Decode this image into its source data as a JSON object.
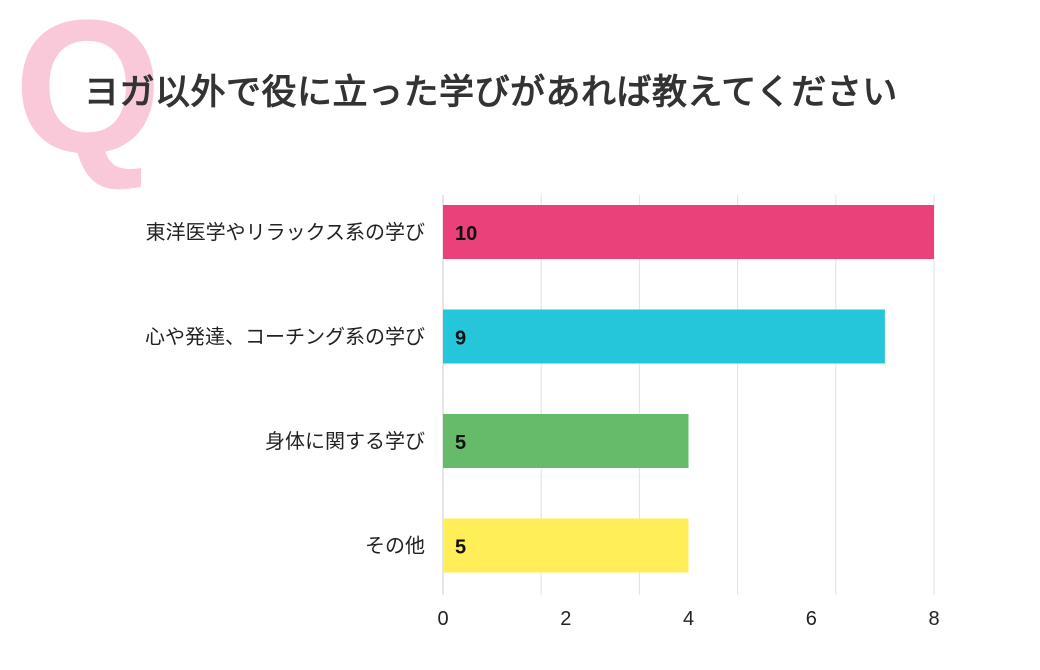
{
  "header": {
    "q_mark": "Q",
    "title": "ヨガ以外で役に立った学びがあれば教えてください"
  },
  "chart_data": {
    "type": "bar",
    "orientation": "horizontal",
    "title": "ヨガ以外で役に立った学びがあれば教えてください",
    "categories": [
      "東洋医学やリラックス系の学び",
      "心や発達、コーチング系の学び",
      "身体に関する学び",
      "その他"
    ],
    "values": [
      10,
      9,
      5,
      5
    ],
    "data_labels": [
      "10",
      "9",
      "5",
      "5"
    ],
    "colors": [
      "#EB417A",
      "#26C6DA",
      "#66BB6A",
      "#FFEE58"
    ],
    "xlim": [
      0,
      10
    ],
    "x_tick_labels": [
      "0",
      "2",
      "4",
      "6",
      "8"
    ],
    "grid": true,
    "xlabel": "",
    "ylabel": ""
  }
}
